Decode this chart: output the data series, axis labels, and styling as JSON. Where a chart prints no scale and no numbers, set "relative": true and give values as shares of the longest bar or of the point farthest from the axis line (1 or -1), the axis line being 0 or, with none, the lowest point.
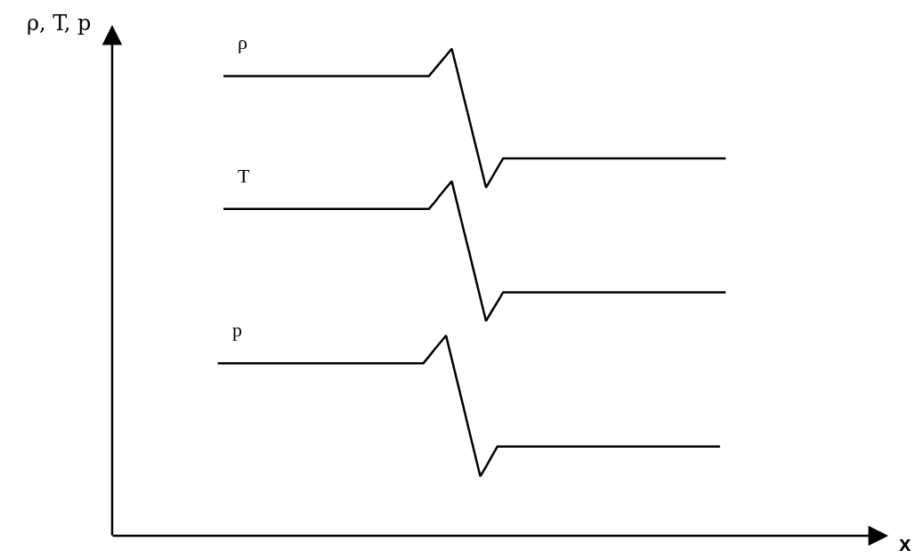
{
  "chart_data": {
    "type": "line",
    "relative": true,
    "xlabel": "x",
    "ylabel": "ρ, T, p",
    "line_style": "solid",
    "categories": [
      null,
      null,
      null,
      null,
      null,
      null,
      null,
      null,
      null,
      null,
      null,
      null,
      null,
      null,
      null,
      null,
      null,
      null,
      null,
      null,
      null,
      null,
      null,
      null,
      null,
      null,
      null,
      null,
      null,
      null,
      null,
      null,
      null,
      null,
      null,
      null,
      null,
      null,
      null,
      null,
      null,
      null,
      null,
      null,
      null,
      null,
      null,
      null,
      null,
      null,
      null,
      null,
      null,
      null,
      null,
      null,
      null,
      null,
      null,
      null,
      null,
      null,
      null,
      null,
      null,
      null,
      null,
      null,
      null,
      null,
      null,
      null,
      null,
      null,
      null,
      null,
      null,
      null,
      null,
      null,
      null,
      null,
      null,
      null,
      null,
      null,
      null,
      null,
      null,
      null,
      null,
      null,
      null,
      null,
      null,
      null,
      null,
      null,
      null,
      null,
      null,
      null,
      null,
      null,
      null,
      null,
      null,
      null,
      null,
      null,
      null,
      null,
      null,
      null,
      null,
      null,
      null,
      null,
      null,
      null,
      null,
      null,
      null,
      null,
      null,
      null,
      null,
      null,
      null,
      null,
      null,
      null,
      null,
      null,
      null,
      null
    ],
    "series": [
      {
        "name": "ρ",
        "color": "#000000",
        "values": [
          null,
          null,
          null,
          null,
          null,
          null,
          null,
          null,
          null,
          null,
          null,
          null,
          null,
          null,
          null,
          null,
          null,
          null,
          null,
          0.944,
          0.944,
          0.944,
          0.944,
          0.944,
          0.944,
          0.944,
          0.944,
          0.944,
          0.944,
          0.944,
          0.944,
          0.944,
          0.944,
          0.944,
          0.944,
          0.944,
          0.944,
          0.944,
          0.944,
          0.944,
          0.944,
          0.944,
          0.944,
          0.944,
          0.944,
          0.944,
          0.944,
          0.944,
          0.944,
          0.944,
          0.944,
          0.944,
          0.944,
          0.944,
          0.944,
          0.944,
          0.958,
          0.972,
          0.986,
          1.0,
          0.953,
          0.905,
          0.858,
          0.81,
          0.763,
          0.715,
          0.735,
          0.755,
          0.775,
          0.775,
          0.775,
          0.775,
          0.775,
          0.775,
          0.775,
          0.775,
          0.775,
          0.775,
          0.775,
          0.775,
          0.775,
          0.775,
          0.775,
          0.775,
          0.775,
          0.775,
          0.775,
          0.775,
          0.775,
          0.775,
          0.775,
          0.775,
          0.775,
          0.775,
          0.775,
          0.775,
          0.775,
          0.775,
          0.775,
          0.775,
          0.775,
          0.775,
          0.775,
          0.775,
          0.775,
          0.775,
          0.775,
          0.775,
          null,
          null,
          null,
          null,
          null,
          null,
          null,
          null,
          null,
          null,
          null,
          null,
          null,
          null,
          null,
          null,
          null,
          null,
          null,
          null,
          null,
          null,
          null,
          null,
          null,
          null,
          null,
          null
        ]
      },
      {
        "name": "T",
        "color": "#000000",
        "values": [
          null,
          null,
          null,
          null,
          null,
          null,
          null,
          null,
          null,
          null,
          null,
          null,
          null,
          null,
          null,
          null,
          null,
          null,
          null,
          0.671,
          0.671,
          0.671,
          0.671,
          0.671,
          0.671,
          0.671,
          0.671,
          0.671,
          0.671,
          0.671,
          0.671,
          0.671,
          0.671,
          0.671,
          0.671,
          0.671,
          0.671,
          0.671,
          0.671,
          0.671,
          0.671,
          0.671,
          0.671,
          0.671,
          0.671,
          0.671,
          0.671,
          0.671,
          0.671,
          0.671,
          0.671,
          0.671,
          0.671,
          0.671,
          0.671,
          0.671,
          0.685,
          0.7,
          0.714,
          0.728,
          0.68,
          0.632,
          0.585,
          0.537,
          0.489,
          0.441,
          0.461,
          0.48,
          0.5,
          0.5,
          0.5,
          0.5,
          0.5,
          0.5,
          0.5,
          0.5,
          0.5,
          0.5,
          0.5,
          0.5,
          0.5,
          0.5,
          0.5,
          0.5,
          0.5,
          0.5,
          0.5,
          0.5,
          0.5,
          0.5,
          0.5,
          0.5,
          0.5,
          0.5,
          0.5,
          0.5,
          0.5,
          0.5,
          0.5,
          0.5,
          0.5,
          0.5,
          0.5,
          0.5,
          0.5,
          0.5,
          0.5,
          0.5,
          null,
          null,
          null,
          null,
          null,
          null,
          null,
          null,
          null,
          null,
          null,
          null,
          null,
          null,
          null,
          null,
          null,
          null,
          null,
          null,
          null,
          null,
          null,
          null,
          null,
          null,
          null,
          null
        ]
      },
      {
        "name": "p",
        "color": "#000000",
        "values": [
          null,
          null,
          null,
          null,
          null,
          null,
          null,
          null,
          null,
          null,
          null,
          null,
          null,
          null,
          null,
          null,
          null,
          null,
          0.354,
          0.354,
          0.354,
          0.354,
          0.354,
          0.354,
          0.354,
          0.354,
          0.354,
          0.354,
          0.354,
          0.354,
          0.354,
          0.354,
          0.354,
          0.354,
          0.354,
          0.354,
          0.354,
          0.354,
          0.354,
          0.354,
          0.354,
          0.354,
          0.354,
          0.354,
          0.354,
          0.354,
          0.354,
          0.354,
          0.354,
          0.354,
          0.354,
          0.354,
          0.354,
          0.354,
          0.354,
          0.368,
          0.383,
          0.397,
          0.411,
          0.363,
          0.315,
          0.267,
          0.218,
          0.17,
          0.122,
          0.142,
          0.163,
          0.183,
          0.183,
          0.183,
          0.183,
          0.183,
          0.183,
          0.183,
          0.183,
          0.183,
          0.183,
          0.183,
          0.183,
          0.183,
          0.183,
          0.183,
          0.183,
          0.183,
          0.183,
          0.183,
          0.183,
          0.183,
          0.183,
          0.183,
          0.183,
          0.183,
          0.183,
          0.183,
          0.183,
          0.183,
          0.183,
          0.183,
          0.183,
          0.183,
          0.183,
          0.183,
          0.183,
          0.183,
          0.183,
          0.183,
          0.183,
          null,
          null,
          null,
          null,
          null,
          null,
          null,
          null,
          null,
          null,
          null,
          null,
          null,
          null,
          null,
          null,
          null,
          null,
          null,
          null,
          null,
          null,
          null,
          null,
          null,
          null,
          null,
          null,
          null
        ]
      }
    ]
  }
}
